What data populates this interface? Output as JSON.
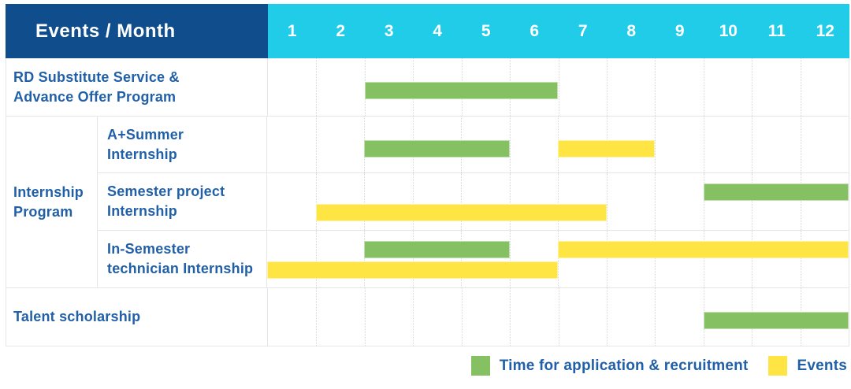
{
  "header": {
    "title": "Events / Month"
  },
  "colors": {
    "header_bg": "#0f4d8c",
    "months_bg": "#21cce9",
    "green": "#85c162",
    "yellow": "#ffe544",
    "label_text": "#2160a8"
  },
  "chart_data": {
    "type": "bar",
    "subtype": "gantt-schedule",
    "title": "Events / Month",
    "x_axis": {
      "label": "Month",
      "ticks": [
        "1",
        "2",
        "3",
        "4",
        "5",
        "6",
        "7",
        "8",
        "9",
        "10",
        "11",
        "12"
      ],
      "range": [
        1,
        12
      ]
    },
    "legend": [
      {
        "label": "Time for application & recruitment",
        "color": "#85c162"
      },
      {
        "label": "Events",
        "color": "#ffe544"
      }
    ],
    "legend_position": "bottom-right",
    "grid": "vertical-dotted",
    "rows": [
      {
        "group": null,
        "label": "RD Substitute Service &\nAdvance Offer Program",
        "bars": [
          {
            "series": "Time for application & recruitment",
            "start_month": 3,
            "end_month": 6,
            "line": "center"
          }
        ]
      },
      {
        "group": "Internship\nProgram",
        "label": "A+Summer\nInternship",
        "bars": [
          {
            "series": "Time for application & recruitment",
            "start_month": 3,
            "end_month": 5,
            "line": "center"
          },
          {
            "series": "Events",
            "start_month": 7,
            "end_month": 8,
            "line": "center"
          }
        ]
      },
      {
        "group": "Internship\nProgram",
        "label": "Semester project\nInternship",
        "bars": [
          {
            "series": "Time for application & recruitment",
            "start_month": 10,
            "end_month": 12,
            "line": "upper"
          },
          {
            "series": "Events",
            "start_month": 2,
            "end_month": 7,
            "line": "lower"
          }
        ]
      },
      {
        "group": "Internship\nProgram",
        "label": "In-Semester\ntechnician Internship",
        "bars": [
          {
            "series": "Time for application & recruitment",
            "start_month": 3,
            "end_month": 5,
            "line": "upper"
          },
          {
            "series": "Events",
            "start_month": 7,
            "end_month": 12,
            "line": "upper"
          },
          {
            "series": "Events",
            "start_month": 1,
            "end_month": 6,
            "line": "lower"
          }
        ]
      },
      {
        "group": null,
        "label": "Talent scholarship",
        "bars": [
          {
            "series": "Time for application & recruitment",
            "start_month": 10,
            "end_month": 12,
            "line": "center"
          }
        ]
      }
    ]
  }
}
